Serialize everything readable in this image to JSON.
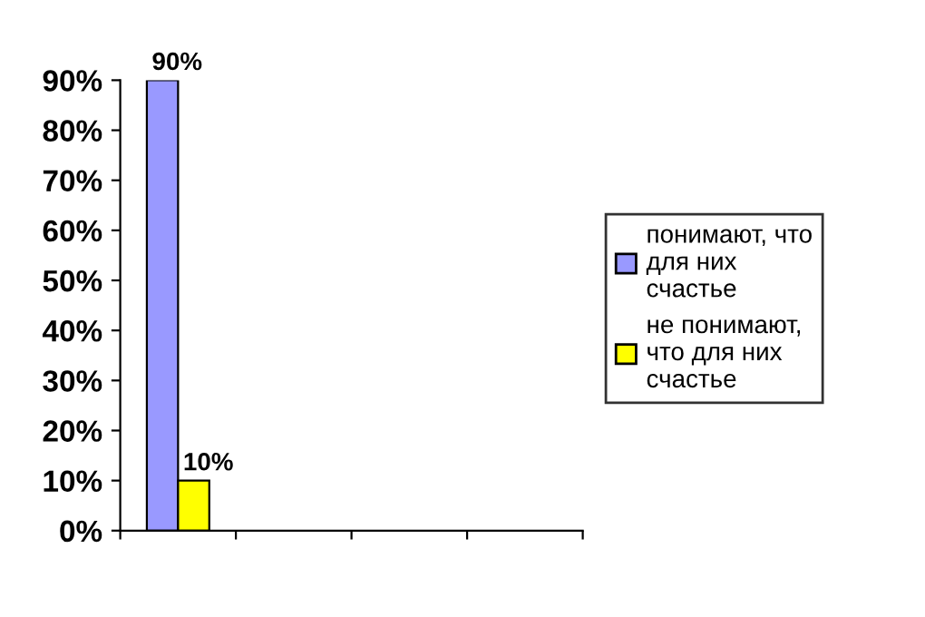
{
  "chart_data": {
    "type": "bar",
    "categories": [
      null,
      null,
      null,
      null
    ],
    "series": [
      {
        "name": "понимают, что\nдля них\nсчастье",
        "color": "#9999ff",
        "values": [
          90,
          null,
          null,
          null
        ],
        "value_labels": [
          "90%",
          null,
          null,
          null
        ]
      },
      {
        "name": "не понимают,\nчто для них\nсчастье",
        "color": "#ffff00",
        "values": [
          10,
          null,
          null,
          null
        ],
        "value_labels": [
          "10%",
          null,
          null,
          null
        ]
      }
    ],
    "ylim": [
      0,
      90
    ],
    "yticks": [
      {
        "value": 0,
        "label": "0%"
      },
      {
        "value": 10,
        "label": "10%"
      },
      {
        "value": 20,
        "label": "20%"
      },
      {
        "value": 30,
        "label": "30%"
      },
      {
        "value": 40,
        "label": "40%"
      },
      {
        "value": 50,
        "label": "50%"
      },
      {
        "value": 60,
        "label": "60%"
      },
      {
        "value": 70,
        "label": "70%"
      },
      {
        "value": 80,
        "label": "80%"
      },
      {
        "value": 90,
        "label": "90%"
      }
    ],
    "grid": false,
    "legend": "right"
  }
}
